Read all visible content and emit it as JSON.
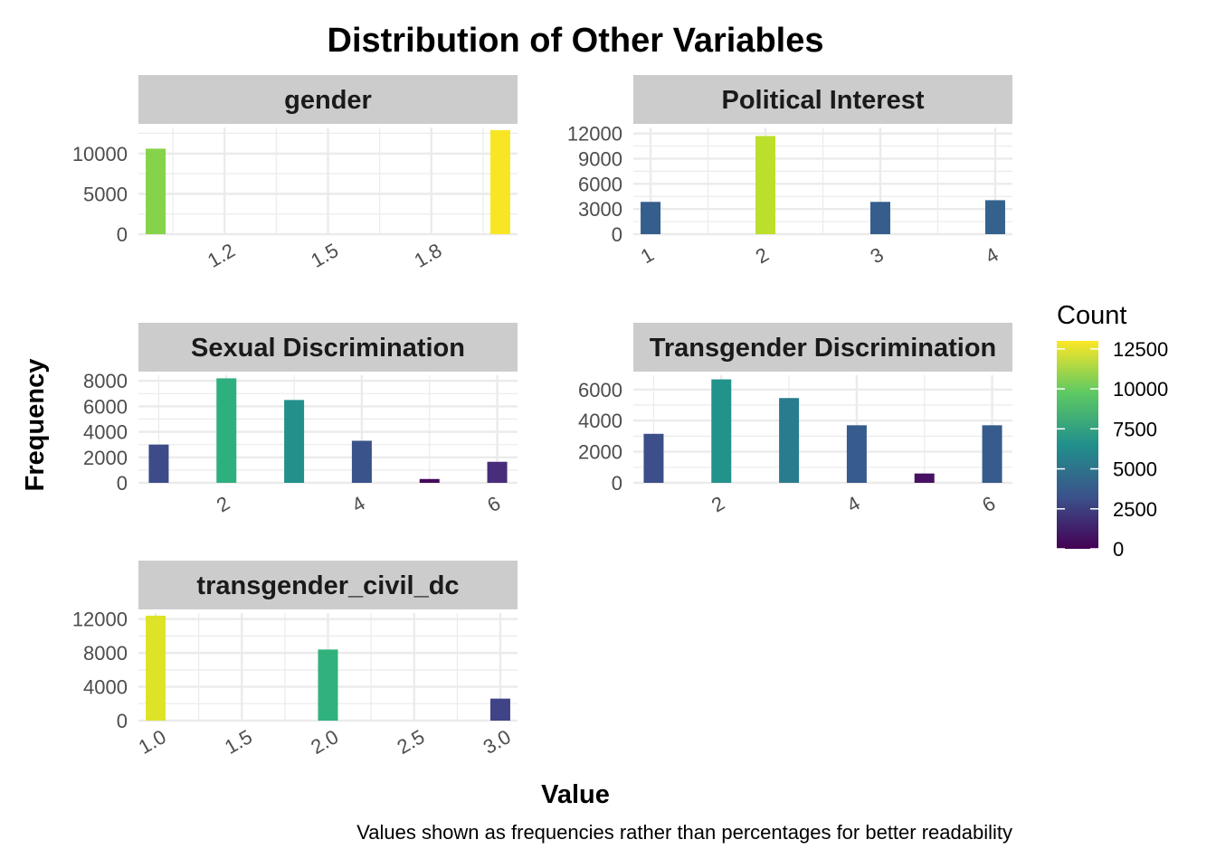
{
  "chart_data": {
    "type": "bar",
    "title": "Distribution of Other Variables",
    "xlabel": "Value",
    "ylabel": "Frequency",
    "caption": "Values shown as frequencies rather than percentages for better readability",
    "fill_scale": "viridis",
    "legend": {
      "title": "Count",
      "position": "right",
      "range": [
        0,
        13000
      ],
      "ticks": [
        "0",
        "2500",
        "5000",
        "7500",
        "10000",
        "12500"
      ]
    },
    "grid": true,
    "panels": [
      {
        "title": "gender",
        "x": [
          1,
          2
        ],
        "values": [
          10600,
          12900
        ],
        "xlim": [
          0.95,
          2.05
        ],
        "ylim": [
          0,
          13000
        ],
        "xticks": [
          "1.2",
          "1.5",
          "1.8"
        ],
        "yticks": [
          "0",
          "5000",
          "10000"
        ]
      },
      {
        "title": "Political Interest",
        "x": [
          1,
          2,
          3,
          4
        ],
        "values": [
          3850,
          11700,
          3850,
          4050
        ],
        "xlim": [
          0.85,
          4.15
        ],
        "ylim": [
          0,
          12500
        ],
        "xticks": [
          "1",
          "2",
          "3",
          "4"
        ],
        "yticks": [
          "0",
          "3000",
          "6000",
          "9000",
          "12000"
        ]
      },
      {
        "title": "Sexual Discrimination",
        "x": [
          1,
          2,
          3,
          4,
          5,
          6
        ],
        "values": [
          3000,
          8200,
          6500,
          3300,
          300,
          1650
        ],
        "xlim": [
          0.7,
          6.3
        ],
        "ylim": [
          0,
          8300
        ],
        "xticks": [
          "2",
          "4",
          "6"
        ],
        "yticks": [
          "0",
          "2000",
          "4000",
          "6000",
          "8000"
        ]
      },
      {
        "title": "Transgender Discrimination",
        "x": [
          1,
          2,
          3,
          4,
          5,
          6
        ],
        "values": [
          3150,
          6650,
          5450,
          3700,
          600,
          3700
        ],
        "xlim": [
          0.7,
          6.3
        ],
        "ylim": [
          0,
          6800
        ],
        "xticks": [
          "2",
          "4",
          "6"
        ],
        "yticks": [
          "0",
          "2000",
          "4000",
          "6000"
        ]
      },
      {
        "title": "transgender_civil_dc",
        "x": [
          1,
          2,
          3
        ],
        "values": [
          12400,
          8400,
          2600
        ],
        "xlim": [
          0.9,
          3.1
        ],
        "ylim": [
          0,
          12500
        ],
        "xticks": [
          "1.0",
          "1.5",
          "2.0",
          "2.5",
          "3.0"
        ],
        "yticks": [
          "0",
          "4000",
          "8000",
          "12000"
        ]
      }
    ]
  }
}
